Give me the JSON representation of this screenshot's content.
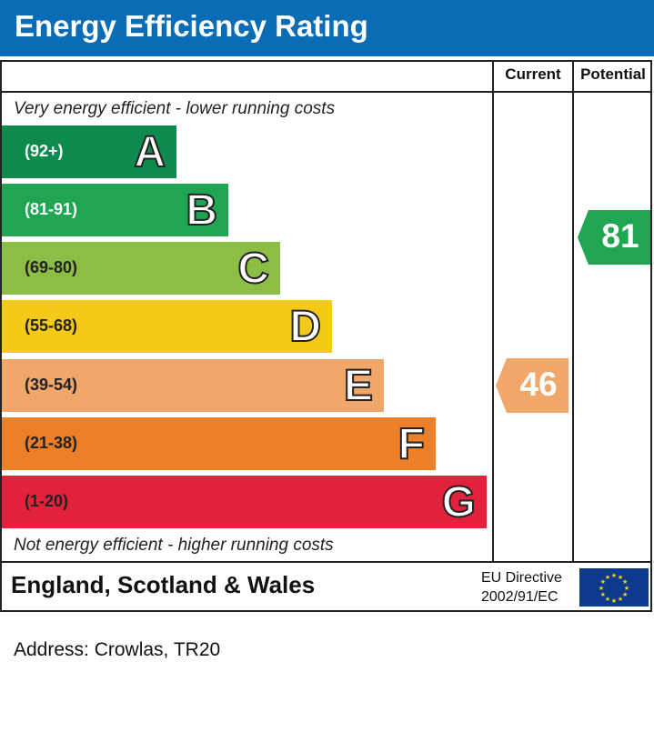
{
  "header": {
    "title": "Energy Efficiency Rating"
  },
  "columns": {
    "current": "Current",
    "potential": "Potential"
  },
  "notes": {
    "top": "Very energy efficient - lower running costs",
    "bottom": "Not energy efficient - higher running costs"
  },
  "footer": {
    "region": "England, Scotland & Wales",
    "directive_line1": "EU Directive",
    "directive_line2": "2002/91/EC"
  },
  "address": "Address: Crowlas, TR20",
  "chart_data": {
    "type": "bar",
    "categories": [
      "A",
      "B",
      "C",
      "D",
      "E",
      "F",
      "G"
    ],
    "ranges": [
      "(92+)",
      "(81-91)",
      "(69-80)",
      "(55-68)",
      "(39-54)",
      "(21-38)",
      "(1-20)"
    ],
    "colors": [
      "#0f8a4f",
      "#20a553",
      "#8cbd45",
      "#f5c918",
      "#f1a76a",
      "#ec7f27",
      "#e2223c"
    ],
    "current": {
      "value": "46",
      "band": "E",
      "color": "#f1a76a"
    },
    "potential": {
      "value": "81",
      "band": "B",
      "color": "#20a553"
    }
  }
}
